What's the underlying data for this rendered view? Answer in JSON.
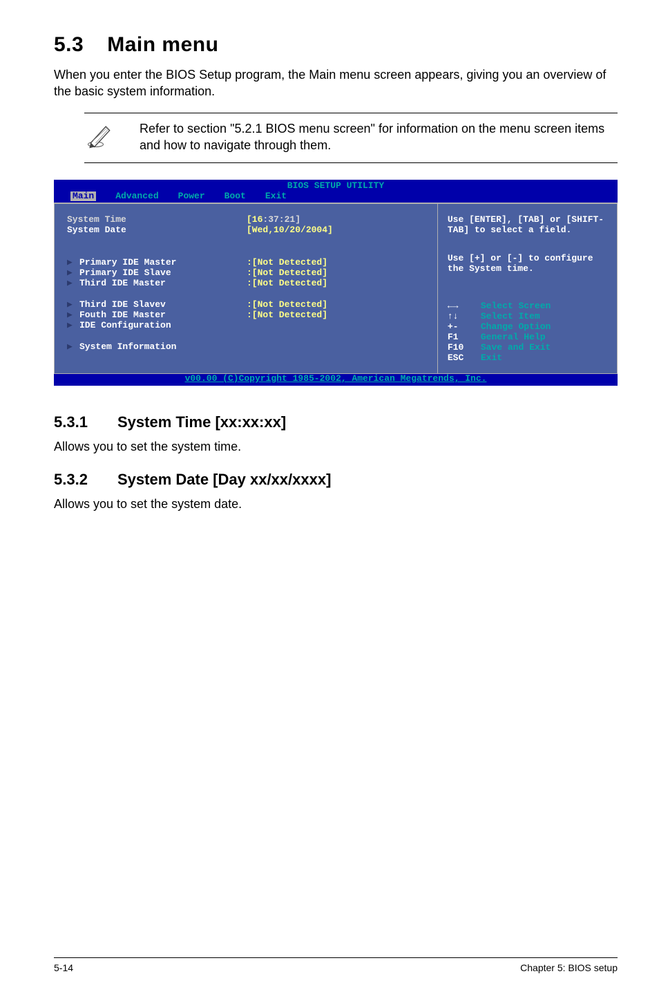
{
  "section": {
    "number": "5.3",
    "title": "Main menu",
    "intro": "When you enter the BIOS Setup program, the Main menu screen appears, giving you an overview of the basic system information."
  },
  "note": {
    "text": "Refer to section \"5.2.1  BIOS menu screen\" for information on the menu screen items and how to navigate through them."
  },
  "bios": {
    "title": "BIOS SETUP UTILITY",
    "tabs": [
      "Main",
      "Advanced",
      "Power",
      "Boot",
      "Exit"
    ],
    "active_tab": "Main",
    "left_rows": [
      {
        "kind": "selected",
        "label": "System Time",
        "value": "[16:37:21]",
        "value_sel_prefix": "[16",
        "value_sel_rest": ":37:21]"
      },
      {
        "kind": "normal",
        "label": "System Date",
        "value": "[Wed,10/20/2004]"
      },
      {
        "kind": "gap"
      },
      {
        "kind": "gap"
      },
      {
        "kind": "arrow",
        "label": "Primary IDE Master",
        "value": ":[Not Detected]"
      },
      {
        "kind": "arrow",
        "label": "Primary IDE Slave",
        "value": ":[Not Detected]"
      },
      {
        "kind": "arrow",
        "label": "Third IDE Master",
        "value": ":[Not Detected]"
      },
      {
        "kind": "gap"
      },
      {
        "kind": "arrow",
        "label": "Third IDE Slavev",
        "value": ":[Not Detected]"
      },
      {
        "kind": "arrow",
        "label": "Fouth IDE Master",
        "value": ":[Not Detected]"
      },
      {
        "kind": "arrow",
        "label": "IDE Configuration",
        "value": ""
      },
      {
        "kind": "gap"
      },
      {
        "kind": "arrow",
        "label": "System Information",
        "value": ""
      }
    ],
    "help": {
      "block1": "Use [ENTER], [TAB] or [SHIFT-TAB] to select a field.",
      "block2": "Use [+] or [-] to configure the System time."
    },
    "keys": [
      {
        "key": "←→",
        "action": "Select Screen"
      },
      {
        "key": "↑↓",
        "action": "Select Item"
      },
      {
        "key": "+-",
        "action": "Change Option"
      },
      {
        "key": "F1",
        "action": "General Help"
      },
      {
        "key": "F10",
        "action": "Save and Exit"
      },
      {
        "key": "ESC",
        "action": "Exit"
      }
    ],
    "footer": "v00.00 (C)Copyright 1985-2002, American Megatrends, Inc."
  },
  "sub1": {
    "number": "5.3.1",
    "title": "System Time [xx:xx:xx]",
    "text": "Allows you to set the system time."
  },
  "sub2": {
    "number": "5.3.2",
    "title": "System Date [Day xx/xx/xxxx]",
    "text": "Allows you to set the system date."
  },
  "footer": {
    "left": "5-14",
    "right": "Chapter 5: BIOS setup"
  },
  "colors": {
    "bios_bg": "#0000aa",
    "bios_panel": "#4a60a0",
    "cyan": "#00aaaa",
    "yellow": "#ffff55"
  }
}
